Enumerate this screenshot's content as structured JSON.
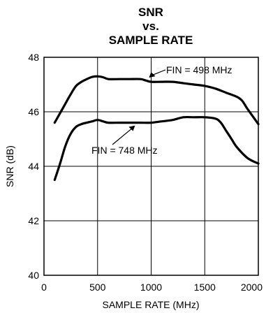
{
  "chart_data": {
    "type": "line",
    "title": [
      "SNR",
      "vs.",
      "SAMPLE RATE"
    ],
    "xlabel": "SAMPLE RATE (MHz)",
    "ylabel": "SNR (dB)",
    "xlim": [
      0,
      2000
    ],
    "ylim": [
      40,
      48
    ],
    "xticks": [
      0,
      500,
      1000,
      1500,
      2000
    ],
    "yticks": [
      40,
      42,
      44,
      46,
      48
    ],
    "grid": true,
    "series": [
      {
        "name": "FIN = 498 MHz",
        "x": [
          100,
          200,
          250,
          300,
          350,
          400,
          450,
          500,
          550,
          600,
          700,
          800,
          900,
          950,
          1000,
          1100,
          1200,
          1300,
          1400,
          1500,
          1600,
          1700,
          1800,
          1850,
          1900,
          2000
        ],
        "y": [
          45.6,
          46.3,
          46.65,
          46.95,
          47.1,
          47.2,
          47.28,
          47.3,
          47.27,
          47.2,
          47.2,
          47.2,
          47.2,
          47.15,
          47.1,
          47.1,
          47.1,
          47.05,
          47.0,
          46.95,
          46.85,
          46.7,
          46.55,
          46.4,
          46.1,
          45.55
        ]
      },
      {
        "name": "FIN = 748 MHz",
        "x": [
          100,
          150,
          200,
          250,
          300,
          350,
          400,
          450,
          500,
          550,
          600,
          700,
          800,
          900,
          1000,
          1100,
          1200,
          1300,
          1400,
          1500,
          1600,
          1650,
          1700,
          1750,
          1800,
          1900,
          2000
        ],
        "y": [
          43.5,
          44.1,
          44.75,
          45.2,
          45.45,
          45.55,
          45.6,
          45.65,
          45.7,
          45.65,
          45.6,
          45.6,
          45.6,
          45.6,
          45.6,
          45.65,
          45.7,
          45.8,
          45.8,
          45.8,
          45.75,
          45.6,
          45.3,
          45.0,
          44.7,
          44.3,
          44.1
        ]
      }
    ],
    "annotations": [
      {
        "text": "FIN = 498 MHz",
        "target_x": 980,
        "target_y": 47.15
      },
      {
        "text": "FIN = 748 MHz",
        "target_x": 850,
        "target_y": 45.6
      }
    ]
  }
}
